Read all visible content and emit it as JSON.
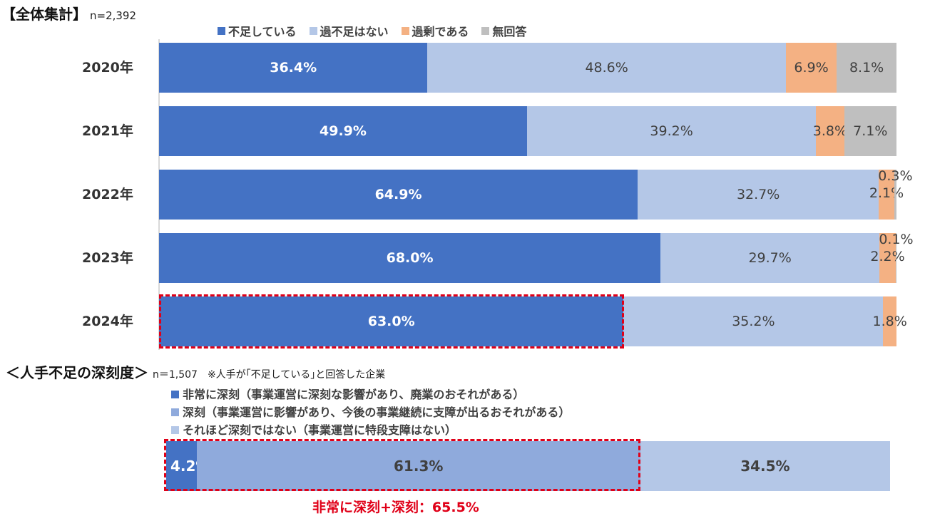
{
  "colors": {
    "shortage": "#4472c4",
    "adequate": "#b4c7e7",
    "surplus": "#f4b183",
    "no_answer": "#bfbfbf",
    "severe_very": "#4472c4",
    "severe": "#8faadc",
    "not_severe": "#b4c7e7",
    "highlight": "#e00018"
  },
  "top": {
    "title": "【全体集計】",
    "n": "n=2,392"
  },
  "bottom": {
    "title": "＜人手不足の深刻度＞",
    "n": "n＝1,507　※人手が｢不足している｣と回答した企業",
    "sum_label": "非常に深刻+深刻：65.5%"
  },
  "chart_data": [
    {
      "type": "bar",
      "orientation": "horizontal",
      "stacked": true,
      "title": "【全体集計】 n=2,392",
      "categories": [
        "2020年",
        "2021年",
        "2022年",
        "2023年",
        "2024年"
      ],
      "series": [
        {
          "name": "不足している",
          "values": [
            36.4,
            49.9,
            64.9,
            68.0,
            63.0
          ],
          "labels": [
            "36.4%",
            "49.9%",
            "64.9%",
            "68.0%",
            "63.0%"
          ]
        },
        {
          "name": "過不足はない",
          "values": [
            48.6,
            39.2,
            32.7,
            29.7,
            35.2
          ],
          "labels": [
            "48.6%",
            "39.2%",
            "32.7%",
            "29.7%",
            "35.2%"
          ]
        },
        {
          "name": "過剰である",
          "values": [
            6.9,
            3.8,
            2.1,
            2.2,
            1.8
          ],
          "labels": [
            "6.9%",
            "3.8%",
            "2.1%",
            "2.2%",
            "1.8%"
          ]
        },
        {
          "name": "無回答",
          "values": [
            8.1,
            7.1,
            0.3,
            0.1,
            0.0
          ],
          "labels": [
            "8.1%",
            "7.1%",
            "0.3%",
            "0.1%",
            ""
          ]
        }
      ],
      "legend": [
        "不足している",
        "過不足はない",
        "過剰である",
        "無回答"
      ],
      "legend_position": "top",
      "xlim": [
        0,
        100
      ],
      "grid": false,
      "annotations": [
        "2024年 不足している bar highlighted with red dashed box"
      ]
    },
    {
      "type": "bar",
      "orientation": "horizontal",
      "stacked": true,
      "title": "＜人手不足の深刻度＞ n＝1,507 ※人手が｢不足している｣と回答した企業",
      "categories": [
        "人手不足の深刻度"
      ],
      "series": [
        {
          "name": "非常に深刻（事業運営に深刻な影響があり、廃業のおそれがある）",
          "values": [
            4.2
          ],
          "labels": [
            "4.2%"
          ]
        },
        {
          "name": "深刻（事業運営に影響があり、今後の事業継続に支障が出るおそれがある）",
          "values": [
            61.3
          ],
          "labels": [
            "61.3%"
          ]
        },
        {
          "name": "それほど深刻ではない（事業運営に特段支障はない）",
          "values": [
            34.5
          ],
          "labels": [
            "34.5%"
          ]
        }
      ],
      "legend": [
        "非常に深刻（事業運営に深刻な影響があり、廃業のおそれがある）",
        "深刻（事業運営に影響があり、今後の事業継続に支障が出るおそれがある）",
        "それほど深刻ではない（事業運営に特段支障はない）"
      ],
      "legend_position": "top",
      "xlim": [
        0,
        100
      ],
      "annotations": [
        "非常に深刻+深刻：65.5%"
      ]
    }
  ]
}
